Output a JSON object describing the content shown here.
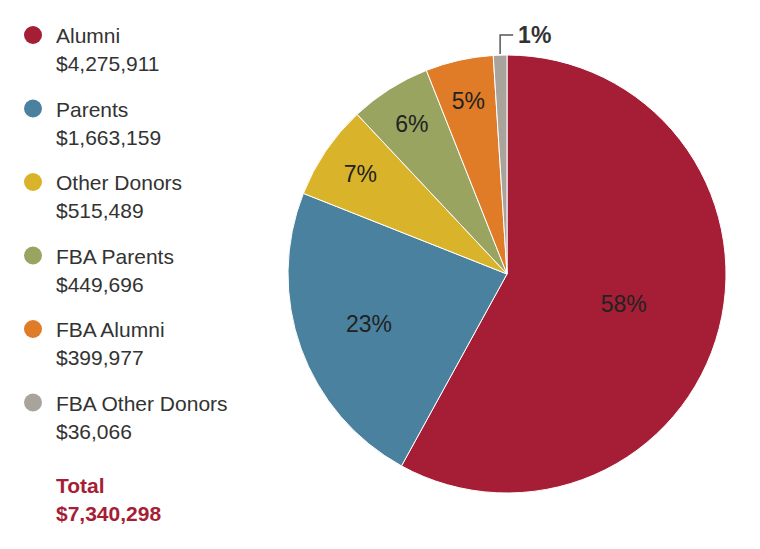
{
  "chart_data": {
    "type": "pie",
    "categories": [
      "Alumni",
      "Parents",
      "Other Donors",
      "FBA Parents",
      "FBA Alumni",
      "FBA Other Donors"
    ],
    "values": [
      58,
      23,
      7,
      6,
      5,
      1
    ],
    "value_labels": [
      "58%",
      "23%",
      "7%",
      "6%",
      "5%",
      "1%"
    ],
    "amounts": [
      4275911,
      1663159,
      515489,
      449696,
      399977,
      36066
    ],
    "amount_labels": [
      "$4,275,911",
      "$1,663,159",
      "$515,489",
      "$449,696",
      "$399,977",
      "$36,066"
    ],
    "colors": [
      "#a51e36",
      "#4a819e",
      "#d9b42b",
      "#98a460",
      "#e07b27",
      "#a8a49c"
    ],
    "total": {
      "label": "Total",
      "value": 7340298,
      "value_label": "$7,340,298"
    },
    "data_labels": true
  }
}
